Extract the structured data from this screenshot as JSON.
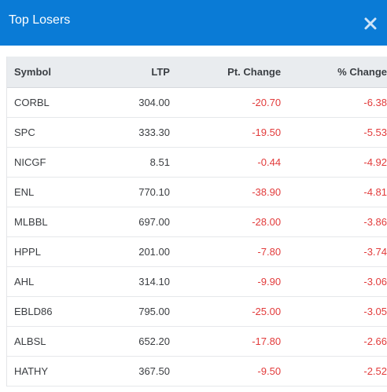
{
  "modal": {
    "title": "Top Losers"
  },
  "table": {
    "headers": {
      "symbol": "Symbol",
      "ltp": "LTP",
      "pt_change": "Pt. Change",
      "pct_change": "% Change"
    },
    "rows": [
      {
        "symbol": "CORBL",
        "ltp": "304.00",
        "pt_change": "-20.70",
        "pct_change": "-6.38"
      },
      {
        "symbol": "SPC",
        "ltp": "333.30",
        "pt_change": "-19.50",
        "pct_change": "-5.53"
      },
      {
        "symbol": "NICGF",
        "ltp": "8.51",
        "pt_change": "-0.44",
        "pct_change": "-4.92"
      },
      {
        "symbol": "ENL",
        "ltp": "770.10",
        "pt_change": "-38.90",
        "pct_change": "-4.81"
      },
      {
        "symbol": "MLBBL",
        "ltp": "697.00",
        "pt_change": "-28.00",
        "pct_change": "-3.86"
      },
      {
        "symbol": "HPPL",
        "ltp": "201.00",
        "pt_change": "-7.80",
        "pct_change": "-3.74"
      },
      {
        "symbol": "AHL",
        "ltp": "314.10",
        "pt_change": "-9.90",
        "pct_change": "-3.06"
      },
      {
        "symbol": "EBLD86",
        "ltp": "795.00",
        "pt_change": "-25.00",
        "pct_change": "-3.05"
      },
      {
        "symbol": "ALBSL",
        "ltp": "652.20",
        "pt_change": "-17.80",
        "pct_change": "-2.66"
      },
      {
        "symbol": "HATHY",
        "ltp": "367.50",
        "pt_change": "-9.50",
        "pct_change": "-2.52"
      }
    ]
  },
  "colors": {
    "header_bg": "#0a7bd6",
    "negative": "#e23b3b",
    "table_header_bg": "#e9ecef"
  },
  "icons": {
    "close": "close-icon"
  }
}
